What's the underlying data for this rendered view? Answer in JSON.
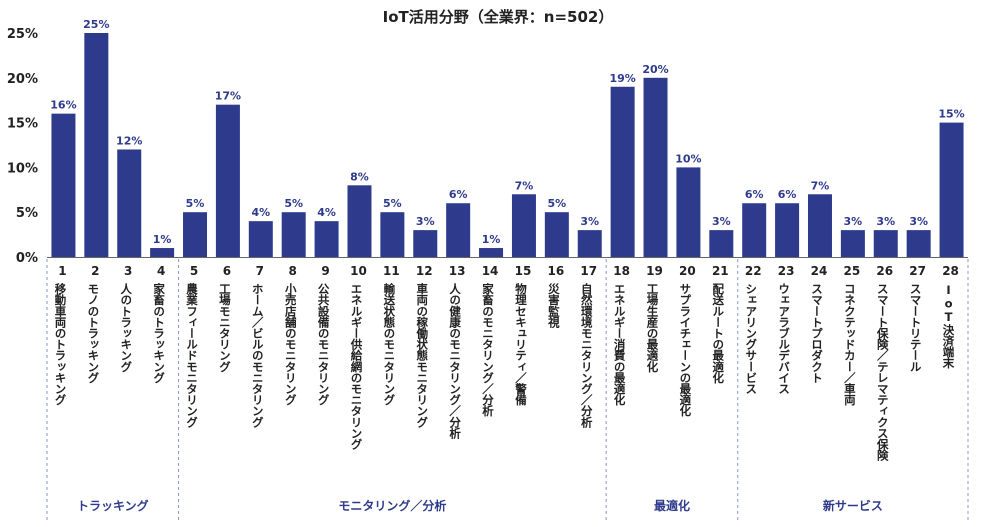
{
  "chart_data": {
    "type": "bar",
    "title": "IoT活用分野（全業界：n=502）",
    "xlabel": "",
    "ylabel": "",
    "ylim": [
      0,
      25
    ],
    "yticks": [
      0,
      5,
      10,
      15,
      20,
      25
    ],
    "ytick_labels": [
      "0%",
      "5%",
      "10%",
      "15%",
      "20%",
      "25%"
    ],
    "bar_color": "#2e3a8c",
    "numbers": [
      "1",
      "2",
      "3",
      "4",
      "5",
      "6",
      "7",
      "8",
      "9",
      "10",
      "11",
      "12",
      "13",
      "14",
      "15",
      "16",
      "17",
      "18",
      "19",
      "20",
      "21",
      "22",
      "23",
      "24",
      "25",
      "26",
      "27",
      "28"
    ],
    "categories": [
      "移動車両のトラッキング",
      "モノのトラッキング",
      "人のトラッキング",
      "家畜のトラッキング",
      "農業フィールドモニタリング",
      "工場モニタリング",
      "ホーム／ビルのモニタリング",
      "小売店舗のモニタリング",
      "公共設備のモニタリング",
      "エネルギー供給網のモニタリング",
      "輸送状態のモニタリング",
      "車両の稼働状態モニタリング",
      "人の健康のモニタリング／分析",
      "家畜のモニタリング／分析",
      "物理セキュリティ／警備",
      "災害監視",
      "自然環境モニタリング／分析",
      "エネルギー消費の最適化",
      "工場生産の最適化",
      "サプライチェーンの最適化",
      "配送ルートの最適化",
      "シェアリングサービス",
      "ウェアラブルデバイス",
      "スマートプロダクト",
      "コネクテッドカー／車両",
      "スマート保険／テレマティクス保険",
      "スマートリテール",
      "IoT決済端末"
    ],
    "values": [
      16,
      25,
      12,
      1,
      5,
      17,
      4,
      5,
      4,
      8,
      5,
      3,
      6,
      1,
      7,
      5,
      3,
      19,
      20,
      10,
      3,
      6,
      6,
      7,
      3,
      3,
      3,
      15
    ],
    "value_labels": [
      "16%",
      "25%",
      "12%",
      "1%",
      "5%",
      "17%",
      "4%",
      "5%",
      "4%",
      "8%",
      "5%",
      "3%",
      "6%",
      "1%",
      "7%",
      "5%",
      "3%",
      "19%",
      "20%",
      "10%",
      "3%",
      "6%",
      "6%",
      "7%",
      "3%",
      "3%",
      "3%",
      "15%"
    ],
    "groups": [
      {
        "name": "トラッキング",
        "start": 0,
        "end": 3
      },
      {
        "name": "モニタリング／分析",
        "start": 4,
        "end": 16
      },
      {
        "name": "最適化",
        "start": 17,
        "end": 20
      },
      {
        "name": "新サービス",
        "start": 21,
        "end": 27
      }
    ]
  }
}
